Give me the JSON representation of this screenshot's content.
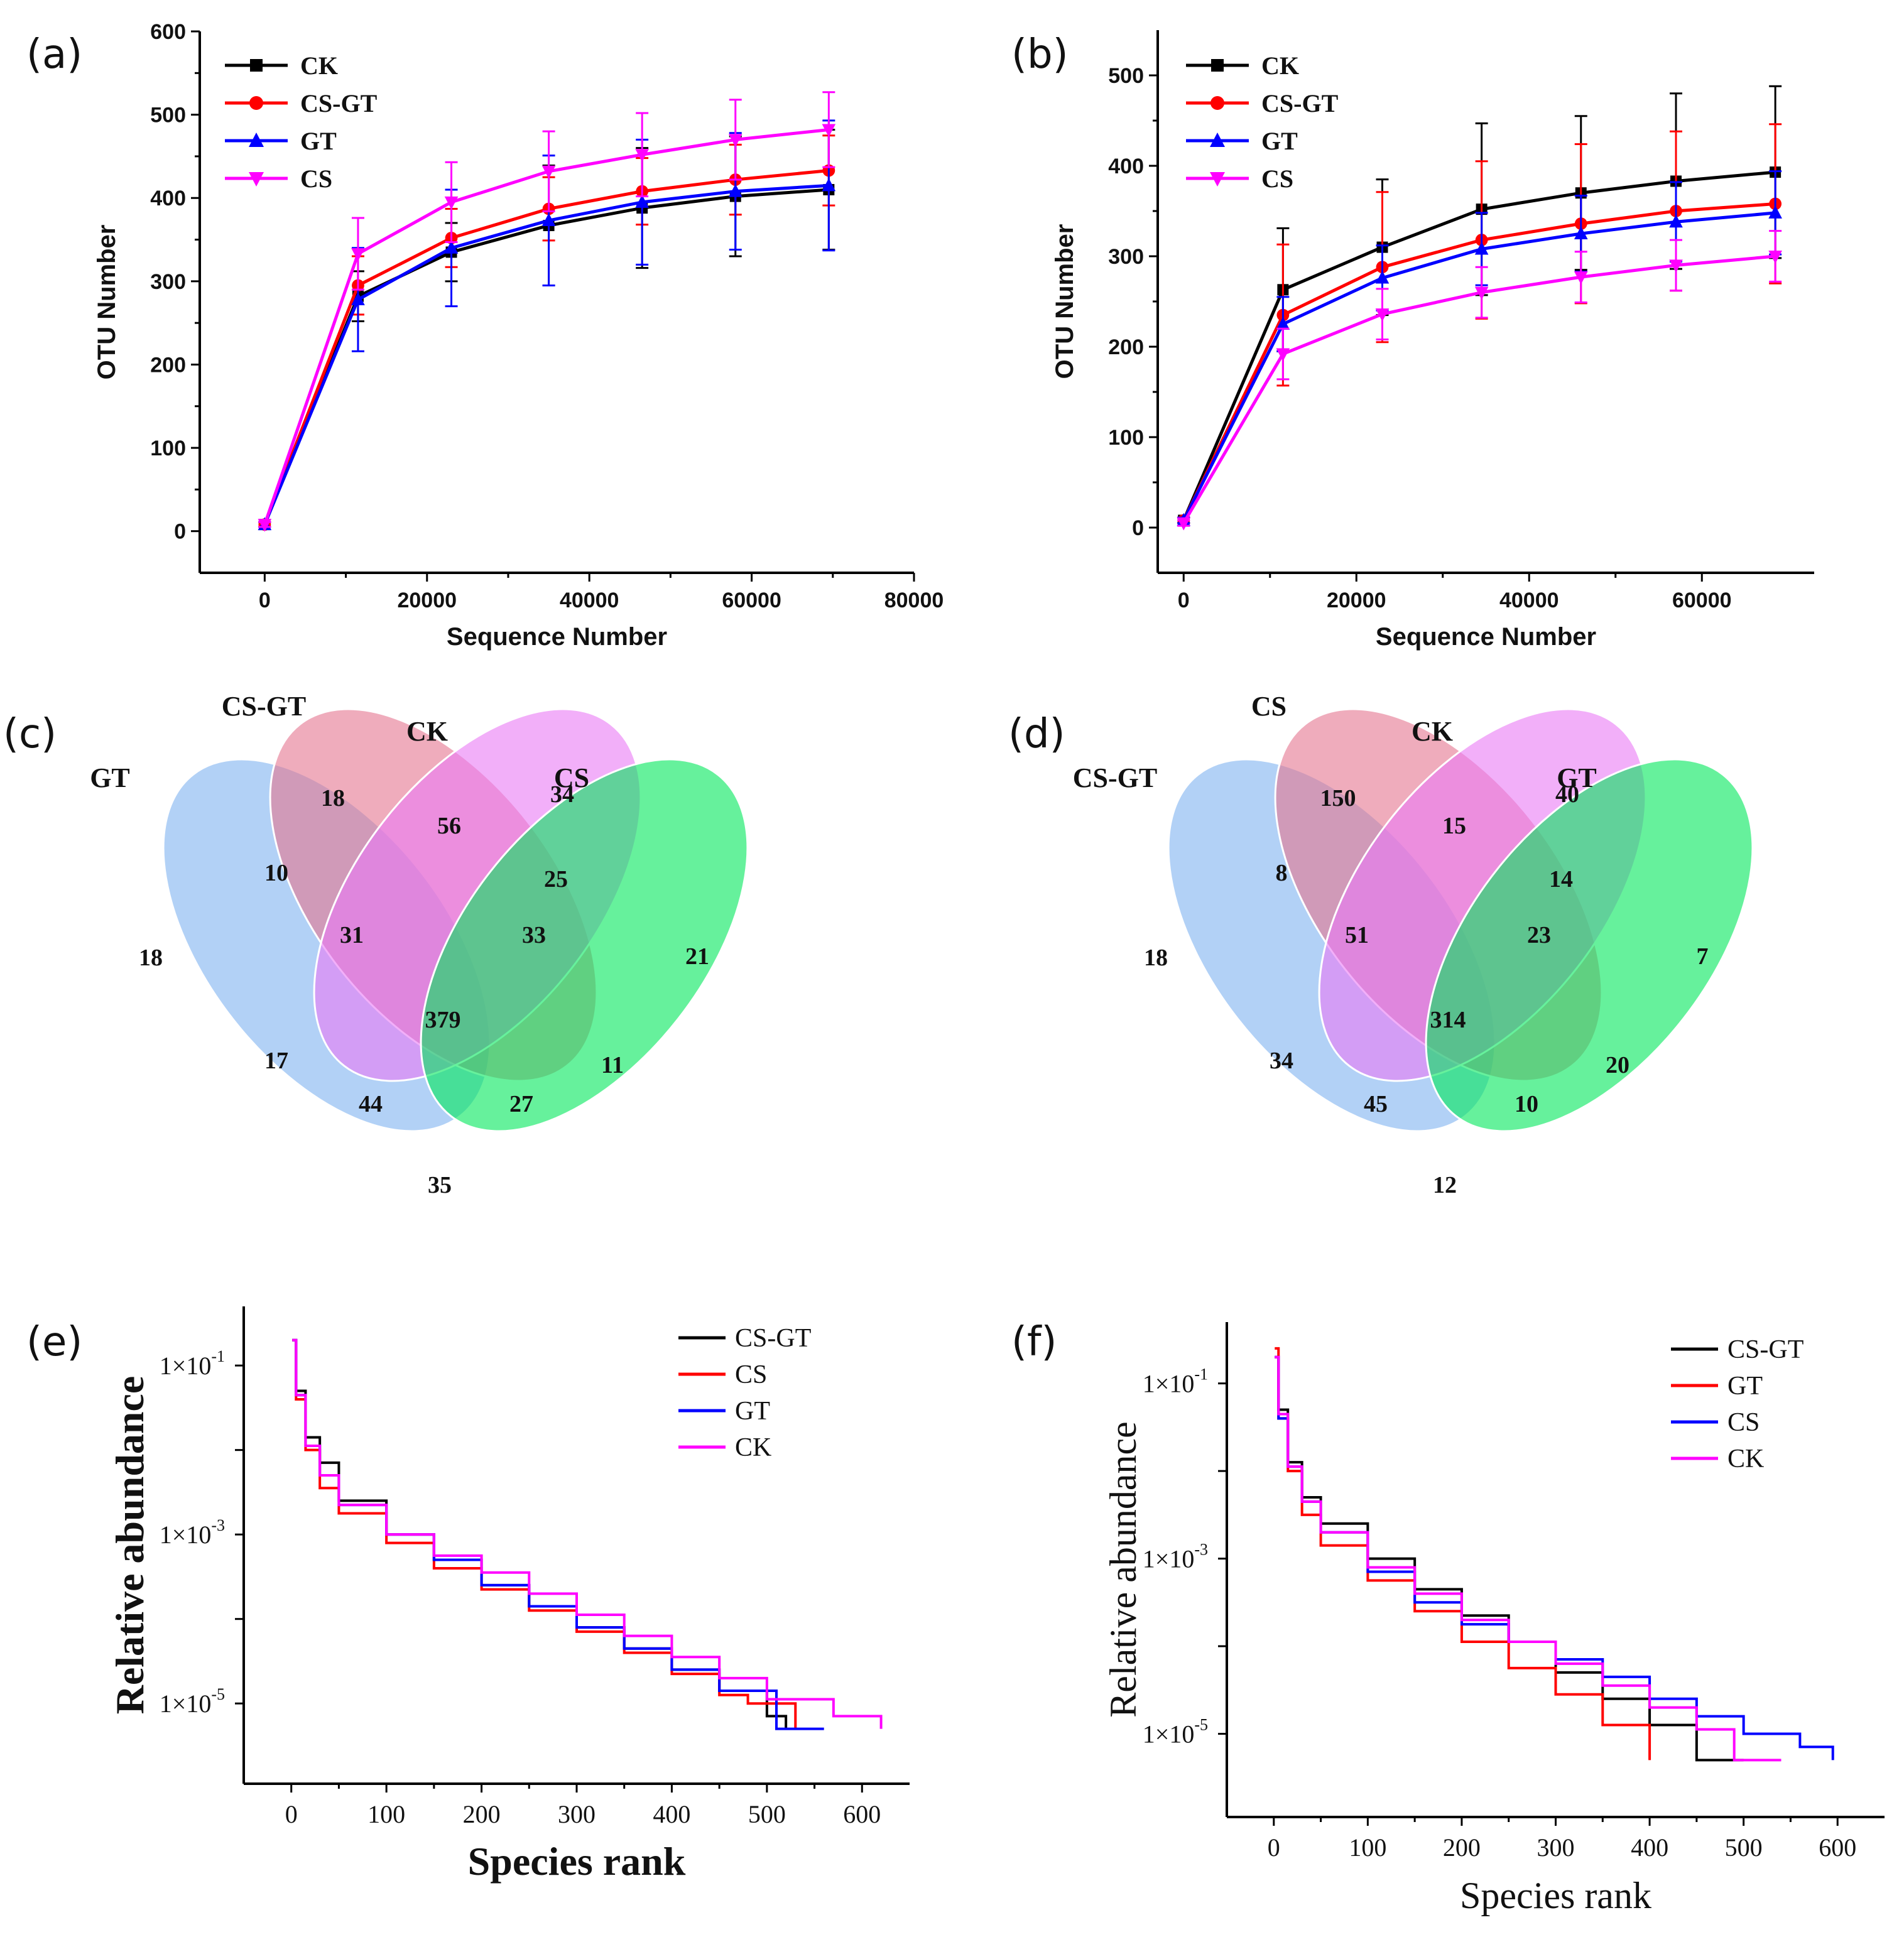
{
  "chart_data": [
    {
      "panel": "(a)",
      "type": "line",
      "xlabel": "Sequence Number",
      "ylabel": "OTU Number",
      "xlim": [
        -8000,
        80000
      ],
      "ylim": [
        -50,
        600
      ],
      "xticks": [
        0,
        20000,
        40000,
        60000,
        80000
      ],
      "yticks": [
        0,
        100,
        200,
        300,
        400,
        500,
        600
      ],
      "x": [
        0,
        11500,
        23000,
        35000,
        46500,
        58000,
        69500
      ],
      "error_bars": true,
      "legend": "top-left",
      "series": [
        {
          "name": "CK",
          "color": "#000000",
          "marker": "square",
          "values": [
            8,
            282,
            335,
            367,
            388,
            402,
            410
          ],
          "errors": [
            3,
            30,
            35,
            72,
            72,
            72,
            72
          ]
        },
        {
          "name": "CS-GT",
          "color": "#ff0000",
          "marker": "circle",
          "values": [
            8,
            295,
            352,
            387,
            408,
            422,
            433
          ],
          "errors": [
            3,
            35,
            35,
            38,
            40,
            42,
            42
          ]
        },
        {
          "name": "GT",
          "color": "#0000ff",
          "marker": "triangle-up",
          "values": [
            8,
            278,
            340,
            373,
            395,
            408,
            415
          ],
          "errors": [
            3,
            62,
            70,
            78,
            75,
            70,
            78
          ]
        },
        {
          "name": "CS",
          "color": "#ff00ff",
          "marker": "triangle-down",
          "values": [
            8,
            333,
            395,
            432,
            452,
            470,
            482
          ],
          "errors": [
            3,
            43,
            48,
            48,
            50,
            48,
            45
          ]
        }
      ]
    },
    {
      "panel": "(b)",
      "type": "line",
      "xlabel": "Sequence Number",
      "ylabel": "OTU Number",
      "xlim": [
        -3000,
        73000
      ],
      "ylim": [
        -50,
        550
      ],
      "xticks": [
        0,
        20000,
        40000,
        60000
      ],
      "yticks": [
        0,
        100,
        200,
        300,
        400,
        500
      ],
      "x": [
        0,
        11500,
        23000,
        34500,
        46000,
        57000,
        68500
      ],
      "error_bars": true,
      "legend": "top-left",
      "series": [
        {
          "name": "CK",
          "color": "#000000",
          "marker": "square",
          "values": [
            8,
            263,
            310,
            352,
            370,
            383,
            393
          ],
          "errors": [
            3,
            68,
            75,
            95,
            85,
            97,
            95
          ]
        },
        {
          "name": "CS-GT",
          "color": "#ff0000",
          "marker": "circle",
          "values": [
            8,
            235,
            288,
            318,
            336,
            350,
            358
          ],
          "errors": [
            3,
            78,
            83,
            87,
            88,
            88,
            88
          ]
        },
        {
          "name": "GT",
          "color": "#0000ff",
          "marker": "triangle-up",
          "values": [
            8,
            225,
            276,
            308,
            325,
            338,
            348
          ],
          "errors": [
            3,
            30,
            36,
            40,
            42,
            44,
            46
          ]
        },
        {
          "name": "CS",
          "color": "#ff00ff",
          "marker": "triangle-down",
          "values": [
            5,
            192,
            236,
            260,
            277,
            290,
            300
          ],
          "errors": [
            3,
            28,
            28,
            28,
            28,
            28,
            28
          ]
        }
      ]
    },
    {
      "panel": "(c)",
      "type": "venn",
      "sets": [
        {
          "name": "GT",
          "color": "#7fb2f0"
        },
        {
          "name": "CS-GT",
          "color": "#e5758f"
        },
        {
          "name": "CK",
          "color": "#ea7af5"
        },
        {
          "name": "CS",
          "color": "#00e85a"
        }
      ],
      "regions": [
        {
          "sets": [
            "GT"
          ],
          "count": 18
        },
        {
          "sets": [
            "CS-GT"
          ],
          "count": 18
        },
        {
          "sets": [
            "CK"
          ],
          "count": 34
        },
        {
          "sets": [
            "CS"
          ],
          "count": 21
        },
        {
          "sets": [
            "GT",
            "CS-GT"
          ],
          "count": 10
        },
        {
          "sets": [
            "CS-GT",
            "CK"
          ],
          "count": 56
        },
        {
          "sets": [
            "CK",
            "CS"
          ],
          "count": 25
        },
        {
          "sets": [
            "GT",
            "CS-GT",
            "CK"
          ],
          "count": 31
        },
        {
          "sets": [
            "CS-GT",
            "CK",
            "CS"
          ],
          "count": 33
        },
        {
          "sets": [
            "GT",
            "CS-GT",
            "CK",
            "CS"
          ],
          "count": 379
        },
        {
          "sets": [
            "GT",
            "CK"
          ],
          "count": 17
        },
        {
          "sets": [
            "CS-GT",
            "CS"
          ],
          "count": 11
        },
        {
          "sets": [
            "GT",
            "CK",
            "CS"
          ],
          "count": 44
        },
        {
          "sets": [
            "GT",
            "CS-GT",
            "CS"
          ],
          "count": 27
        },
        {
          "sets": [
            "GT",
            "CS"
          ],
          "count": 35
        }
      ]
    },
    {
      "panel": "(d)",
      "type": "venn",
      "sets": [
        {
          "name": "CS-GT",
          "color": "#7fb2f0"
        },
        {
          "name": "CS",
          "color": "#e5758f"
        },
        {
          "name": "CK",
          "color": "#ea7af5"
        },
        {
          "name": "GT",
          "color": "#00e85a"
        }
      ],
      "regions": [
        {
          "sets": [
            "CS-GT"
          ],
          "count": 18
        },
        {
          "sets": [
            "CS"
          ],
          "count": 150
        },
        {
          "sets": [
            "CK"
          ],
          "count": 40
        },
        {
          "sets": [
            "GT"
          ],
          "count": 7
        },
        {
          "sets": [
            "CS-GT",
            "CS"
          ],
          "count": 8
        },
        {
          "sets": [
            "CS",
            "CK"
          ],
          "count": 15
        },
        {
          "sets": [
            "CK",
            "GT"
          ],
          "count": 14
        },
        {
          "sets": [
            "CS-GT",
            "CS",
            "CK"
          ],
          "count": 51
        },
        {
          "sets": [
            "CS",
            "CK",
            "GT"
          ],
          "count": 23
        },
        {
          "sets": [
            "CS-GT",
            "CS",
            "CK",
            "GT"
          ],
          "count": 314
        },
        {
          "sets": [
            "CS-GT",
            "CK"
          ],
          "count": 34
        },
        {
          "sets": [
            "CS",
            "GT"
          ],
          "count": 20
        },
        {
          "sets": [
            "CS-GT",
            "CK",
            "GT"
          ],
          "count": 45
        },
        {
          "sets": [
            "CS-GT",
            "CS",
            "GT"
          ],
          "count": 10
        },
        {
          "sets": [
            "CS-GT",
            "GT"
          ],
          "count": 12
        }
      ]
    },
    {
      "panel": "(e)",
      "type": "line",
      "xlabel": "Species rank",
      "ylabel": "Relative abundance",
      "yscale": "log",
      "xlim": [
        -50,
        650
      ],
      "ylim_log10": [
        -5.95,
        -0.3
      ],
      "xticks": [
        0,
        100,
        200,
        300,
        400,
        500,
        600
      ],
      "ytick_labels": [
        {
          "base": "1×10",
          "exp": "-1",
          "log10": -1
        },
        {
          "base": "1×10",
          "exp": "-3",
          "log10": -3
        },
        {
          "base": "1×10",
          "exp": "-5",
          "log10": -5
        }
      ],
      "legend": "top-right",
      "series": [
        {
          "name": "CS-GT",
          "color": "#000000",
          "x": [
            1,
            5,
            15,
            30,
            50,
            100,
            150,
            200,
            250,
            300,
            350,
            400,
            450,
            500,
            520
          ],
          "log10_values": [
            -0.7,
            -1.3,
            -1.85,
            -2.15,
            -2.6,
            -3.0,
            -3.3,
            -3.6,
            -3.85,
            -4.1,
            -4.35,
            -4.6,
            -4.85,
            -5.15,
            -5.3
          ]
        },
        {
          "name": "CS",
          "color": "#ff0000",
          "x": [
            1,
            5,
            15,
            30,
            50,
            100,
            150,
            200,
            250,
            300,
            350,
            400,
            450,
            480,
            530
          ],
          "log10_values": [
            -0.7,
            -1.4,
            -2.0,
            -2.45,
            -2.75,
            -3.1,
            -3.4,
            -3.65,
            -3.9,
            -4.15,
            -4.4,
            -4.65,
            -4.9,
            -5.0,
            -5.3
          ]
        },
        {
          "name": "GT",
          "color": "#0000ff",
          "x": [
            1,
            5,
            15,
            30,
            50,
            100,
            150,
            200,
            250,
            300,
            350,
            400,
            450,
            510,
            560
          ],
          "log10_values": [
            -0.7,
            -1.35,
            -1.95,
            -2.3,
            -2.65,
            -3.0,
            -3.3,
            -3.6,
            -3.85,
            -4.1,
            -4.35,
            -4.6,
            -4.85,
            -5.3,
            -5.3
          ]
        },
        {
          "name": "CK",
          "color": "#ff00ff",
          "x": [
            1,
            5,
            15,
            30,
            50,
            100,
            150,
            200,
            250,
            300,
            350,
            400,
            450,
            500,
            570,
            620
          ],
          "log10_values": [
            -0.7,
            -1.35,
            -1.95,
            -2.3,
            -2.65,
            -3.0,
            -3.25,
            -3.45,
            -3.7,
            -3.95,
            -4.2,
            -4.45,
            -4.7,
            -4.95,
            -5.15,
            -5.3
          ]
        }
      ]
    },
    {
      "panel": "(f)",
      "type": "line",
      "xlabel": "Species rank",
      "ylabel": "Relative abundance",
      "yscale": "log",
      "xlim": [
        -50,
        650
      ],
      "ylim_log10": [
        -5.95,
        -0.3
      ],
      "xticks": [
        0,
        100,
        200,
        300,
        400,
        500,
        600
      ],
      "ytick_labels": [
        {
          "base": "1×10",
          "exp": "-1",
          "log10": -1
        },
        {
          "base": "1×10",
          "exp": "-3",
          "log10": -3
        },
        {
          "base": "1×10",
          "exp": "-5",
          "log10": -5
        }
      ],
      "legend": "top-right",
      "series": [
        {
          "name": "CS-GT",
          "color": "#000000",
          "x": [
            1,
            5,
            15,
            30,
            50,
            100,
            150,
            200,
            250,
            300,
            350,
            400,
            450,
            500
          ],
          "log10_values": [
            -0.7,
            -1.3,
            -1.9,
            -2.3,
            -2.6,
            -3.0,
            -3.35,
            -3.65,
            -3.95,
            -4.3,
            -4.6,
            -4.9,
            -5.3,
            -5.3
          ]
        },
        {
          "name": "GT",
          "color": "#ff0000",
          "x": [
            1,
            5,
            15,
            30,
            50,
            100,
            150,
            200,
            250,
            300,
            350,
            400
          ],
          "log10_values": [
            -0.6,
            -1.4,
            -2.0,
            -2.5,
            -2.85,
            -3.25,
            -3.6,
            -3.95,
            -4.25,
            -4.55,
            -4.9,
            -5.3
          ]
        },
        {
          "name": "CS",
          "color": "#0000ff",
          "x": [
            1,
            5,
            15,
            30,
            50,
            100,
            150,
            200,
            250,
            300,
            350,
            400,
            450,
            500,
            560,
            595
          ],
          "log10_values": [
            -0.7,
            -1.4,
            -1.95,
            -2.35,
            -2.7,
            -3.15,
            -3.5,
            -3.75,
            -3.95,
            -4.15,
            -4.35,
            -4.6,
            -4.8,
            -5.0,
            -5.15,
            -5.3
          ]
        },
        {
          "name": "CK",
          "color": "#ff00ff",
          "x": [
            1,
            5,
            15,
            30,
            50,
            100,
            150,
            200,
            250,
            300,
            350,
            400,
            450,
            490,
            540
          ],
          "log10_values": [
            -0.7,
            -1.35,
            -1.95,
            -2.35,
            -2.7,
            -3.1,
            -3.4,
            -3.7,
            -3.95,
            -4.2,
            -4.45,
            -4.7,
            -4.95,
            -5.3,
            -5.3
          ]
        }
      ]
    }
  ]
}
